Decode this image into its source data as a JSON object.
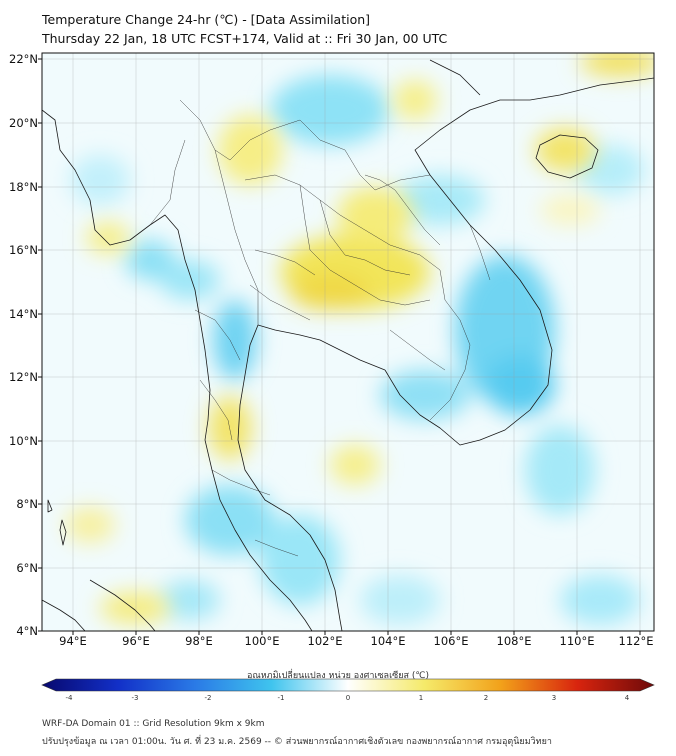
{
  "title_line1": "Temperature Change 24-hr (℃) - [Data Assimilation]",
  "title_line2": "Thursday 22 Jan, 18 UTC FCST+174, Valid at :: Fri 30 Jan, 00 UTC",
  "lat_labels": [
    "22°N",
    "20°N",
    "18°N",
    "16°N",
    "14°N",
    "12°N",
    "10°N",
    "8°N",
    "6°N",
    "4°N"
  ],
  "lon_labels": [
    "94°E",
    "96°E",
    "98°E",
    "100°E",
    "102°E",
    "104°E",
    "106°E",
    "108°E",
    "110°E",
    "112°E"
  ],
  "colorbar": {
    "title": "อุณหภูมิเปลี่ยนแปลง หน่วย องศาเซลเซียส (℃)",
    "ticks": [
      "-4",
      "-3",
      "-2",
      "-1",
      "0",
      "1",
      "2",
      "3",
      "4"
    ],
    "colors": [
      "#08086e",
      "#1230c8",
      "#2a7ae6",
      "#3fc4ee",
      "#ffffff",
      "#f5ea6a",
      "#f2a11a",
      "#d8240e",
      "#6e0a0a"
    ]
  },
  "footer_line1": "WRF-DA Domain 01 :: Grid Resolution 9km x 9km",
  "footer_line2": "ปรับปรุงข้อมูล ณ เวลา 01:00น. วัน ศ. ที่ 23 ม.ค. 2569 -- © ส่วนพยากรณ์อากาศเชิงตัวเลข กองพยากรณ์อากาศ กรมอุตุนิยมวิทยา"
}
